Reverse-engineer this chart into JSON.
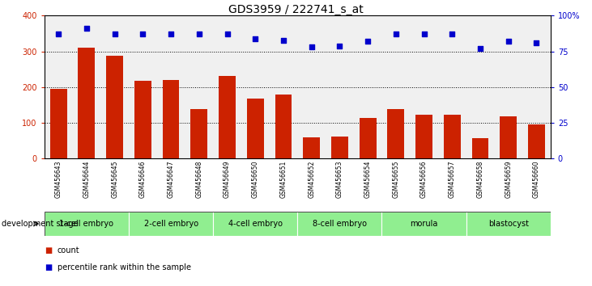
{
  "title": "GDS3959 / 222741_s_at",
  "samples": [
    "GSM456643",
    "GSM456644",
    "GSM456645",
    "GSM456646",
    "GSM456647",
    "GSM456648",
    "GSM456649",
    "GSM456650",
    "GSM456651",
    "GSM456652",
    "GSM456653",
    "GSM456654",
    "GSM456655",
    "GSM456656",
    "GSM456657",
    "GSM456658",
    "GSM456659",
    "GSM456660"
  ],
  "counts": [
    195,
    310,
    288,
    218,
    220,
    138,
    232,
    168,
    180,
    60,
    62,
    115,
    140,
    122,
    124,
    57,
    118,
    95
  ],
  "percentiles": [
    87,
    91,
    87,
    87,
    87,
    87,
    87,
    84,
    83,
    78,
    79,
    82,
    87,
    87,
    87,
    77,
    82,
    81
  ],
  "bar_color": "#cc2200",
  "dot_color": "#0000cc",
  "ylim_left": [
    0,
    400
  ],
  "ylim_right": [
    0,
    100
  ],
  "yticks_left": [
    0,
    100,
    200,
    300,
    400
  ],
  "yticks_right": [
    0,
    25,
    50,
    75,
    100
  ],
  "yticklabels_right": [
    "0",
    "25",
    "50",
    "75",
    "100%"
  ],
  "stages": [
    {
      "label": "1-cell embryo",
      "start": 0,
      "end": 3
    },
    {
      "label": "2-cell embryo",
      "start": 3,
      "end": 6
    },
    {
      "label": "4-cell embryo",
      "start": 6,
      "end": 9
    },
    {
      "label": "8-cell embryo",
      "start": 9,
      "end": 12
    },
    {
      "label": "morula",
      "start": 12,
      "end": 15
    },
    {
      "label": "blastocyst",
      "start": 15,
      "end": 18
    }
  ],
  "stage_color": "#90ee90",
  "stage_border_color": "#ffffff",
  "sample_bg_color": "#c8c8c8",
  "plot_bg_color": "#f0f0f0",
  "grid_color": "#000000",
  "xlabel_area": "development stage",
  "legend_count_label": "count",
  "legend_pct_label": "percentile rank within the sample",
  "title_fontsize": 10,
  "tick_fontsize": 7,
  "sample_fontsize": 5.5,
  "stage_fontsize": 7,
  "legend_fontsize": 7,
  "devstage_fontsize": 7
}
